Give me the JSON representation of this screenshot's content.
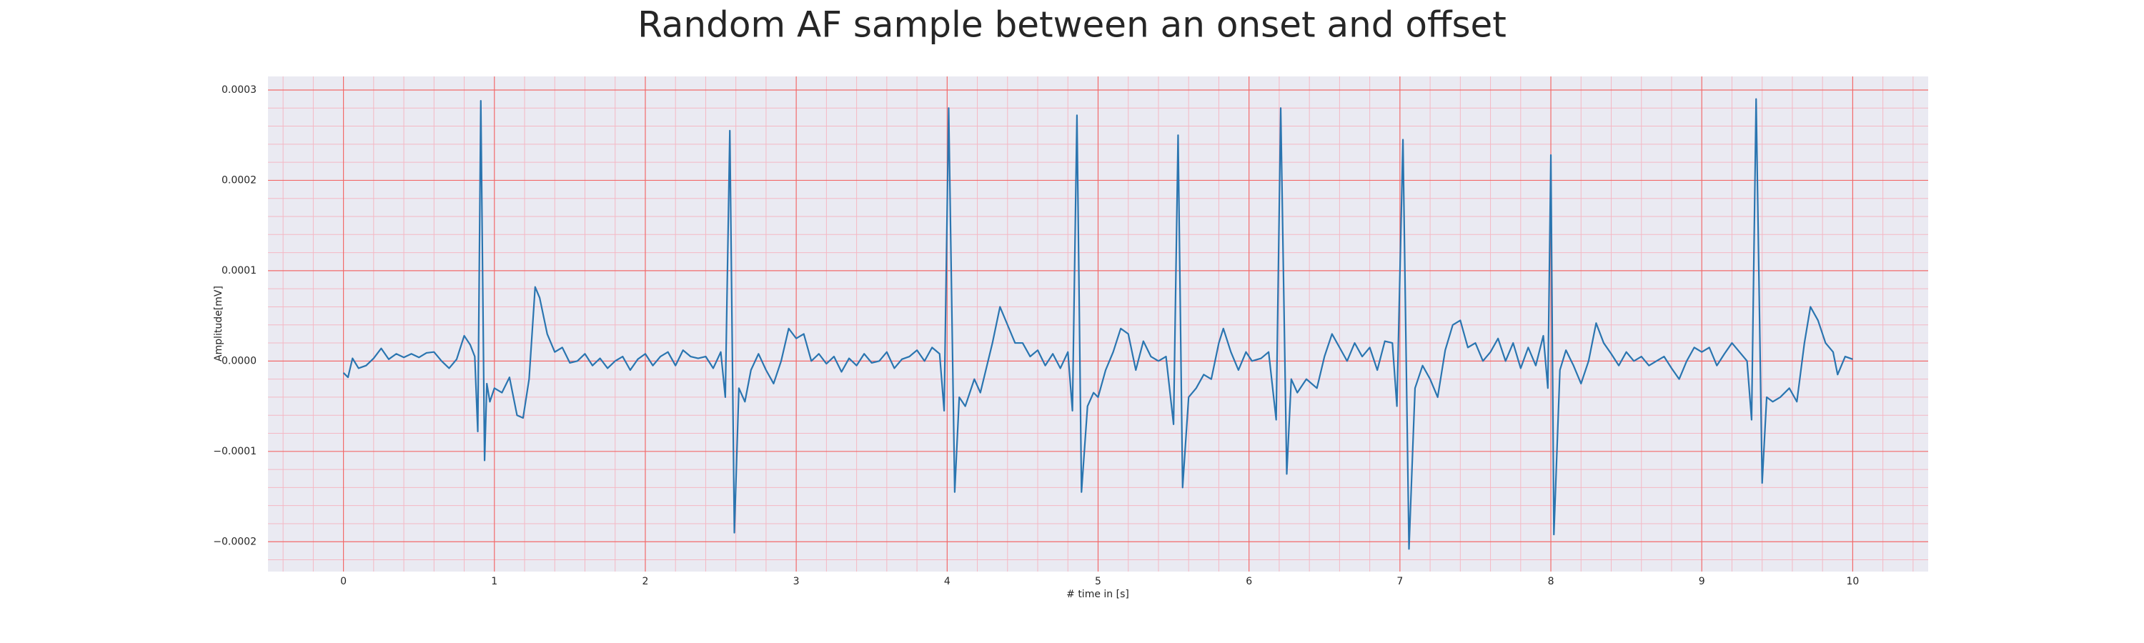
{
  "chart_data": {
    "type": "line",
    "title": "Random AF sample between an onset and offset",
    "xlabel": "# time in [s]",
    "ylabel": "Amplitude[mV]",
    "xlim": [
      -0.5,
      10.5
    ],
    "ylim": [
      -0.000233,
      0.000315
    ],
    "xticks": [
      0,
      1,
      2,
      3,
      4,
      5,
      6,
      7,
      8,
      9,
      10
    ],
    "yticks": [
      {
        "value": -0.0002,
        "label": "−0.0002"
      },
      {
        "value": -0.0001,
        "label": "−0.0001"
      },
      {
        "value": 0,
        "label": "0.0000"
      },
      0.0001,
      0.0002,
      0.0003
    ],
    "grid": true,
    "minor_grid": true,
    "x": [
      0,
      0.03,
      0.06,
      0.1,
      0.15,
      0.2,
      0.25,
      0.3,
      0.35,
      0.4,
      0.45,
      0.5,
      0.55,
      0.6,
      0.65,
      0.7,
      0.75,
      0.8,
      0.84,
      0.87,
      0.89,
      0.91,
      0.935,
      0.95,
      0.97,
      1.0,
      1.05,
      1.1,
      1.15,
      1.19,
      1.23,
      1.27,
      1.3,
      1.35,
      1.4,
      1.45,
      1.5,
      1.55,
      1.6,
      1.65,
      1.7,
      1.75,
      1.8,
      1.85,
      1.9,
      1.95,
      2.0,
      2.05,
      2.1,
      2.15,
      2.2,
      2.25,
      2.3,
      2.35,
      2.4,
      2.45,
      2.5,
      2.53,
      2.56,
      2.59,
      2.62,
      2.66,
      2.7,
      2.75,
      2.8,
      2.85,
      2.9,
      2.95,
      3.0,
      3.05,
      3.1,
      3.15,
      3.2,
      3.25,
      3.3,
      3.35,
      3.4,
      3.45,
      3.5,
      3.55,
      3.6,
      3.65,
      3.7,
      3.75,
      3.8,
      3.85,
      3.9,
      3.95,
      3.98,
      4.01,
      4.05,
      4.08,
      4.12,
      4.18,
      4.22,
      4.3,
      4.35,
      4.4,
      4.45,
      4.5,
      4.55,
      4.6,
      4.65,
      4.7,
      4.75,
      4.8,
      4.83,
      4.86,
      4.89,
      4.93,
      4.97,
      5.0,
      5.05,
      5.1,
      5.15,
      5.2,
      5.25,
      5.3,
      5.35,
      5.4,
      5.45,
      5.5,
      5.53,
      5.56,
      5.6,
      5.65,
      5.7,
      5.75,
      5.8,
      5.83,
      5.88,
      5.93,
      5.98,
      6.02,
      6.08,
      6.13,
      6.18,
      6.21,
      6.25,
      6.28,
      6.32,
      6.38,
      6.45,
      6.5,
      6.55,
      6.6,
      6.65,
      6.7,
      6.75,
      6.8,
      6.85,
      6.9,
      6.95,
      6.98,
      7.02,
      7.06,
      7.1,
      7.15,
      7.2,
      7.25,
      7.3,
      7.35,
      7.4,
      7.45,
      7.5,
      7.55,
      7.6,
      7.65,
      7.7,
      7.75,
      7.8,
      7.85,
      7.9,
      7.95,
      7.98,
      8.0,
      8.02,
      8.06,
      8.1,
      8.15,
      8.2,
      8.25,
      8.3,
      8.35,
      8.4,
      8.45,
      8.5,
      8.55,
      8.6,
      8.65,
      8.7,
      8.75,
      8.8,
      8.85,
      8.9,
      8.95,
      9.0,
      9.05,
      9.1,
      9.15,
      9.2,
      9.25,
      9.3,
      9.33,
      9.36,
      9.4,
      9.43,
      9.47,
      9.52,
      9.58,
      9.63,
      9.68,
      9.72,
      9.77,
      9.82,
      9.87,
      9.9,
      9.95,
      10.0
    ],
    "series": [
      {
        "color": "#2a75b0",
        "values": [
          -1.3e-05,
          -1.8e-05,
          3e-06,
          -8e-06,
          -5e-06,
          3e-06,
          1.4e-05,
          2e-06,
          8e-06,
          4e-06,
          8e-06,
          4e-06,
          9e-06,
          1e-05,
          0,
          -8e-06,
          2e-06,
          2.8e-05,
          1.8e-05,
          5e-06,
          -7.8e-05,
          0.000288,
          -0.00011,
          -2.5e-05,
          -4.5e-05,
          -3e-05,
          -3.5e-05,
          -1.8e-05,
          -6e-05,
          -6.3e-05,
          -2e-05,
          8.2e-05,
          7e-05,
          3e-05,
          1e-05,
          1.5e-05,
          -2e-06,
          0,
          8e-06,
          -5e-06,
          3e-06,
          -8e-06,
          0,
          5e-06,
          -1e-05,
          2e-06,
          8e-06,
          -5e-06,
          5e-06,
          1e-05,
          -5e-06,
          1.2e-05,
          5e-06,
          3e-06,
          5e-06,
          -8e-06,
          1e-05,
          -4e-05,
          0.000255,
          -0.00019,
          -3e-05,
          -4.5e-05,
          -1e-05,
          8e-06,
          -1e-05,
          -2.5e-05,
          0,
          3.6e-05,
          2.5e-05,
          3e-05,
          0,
          8e-06,
          -3e-06,
          5e-06,
          -1.2e-05,
          3e-06,
          -5e-06,
          8e-06,
          -2e-06,
          0,
          1e-05,
          -8e-06,
          2e-06,
          5e-06,
          1.2e-05,
          0,
          1.5e-05,
          8e-06,
          -5.5e-05,
          0.00028,
          -0.000145,
          -4e-05,
          -5e-05,
          -2e-05,
          -3.5e-05,
          2e-05,
          6e-05,
          4e-05,
          2e-05,
          2e-05,
          5e-06,
          1.2e-05,
          -5e-06,
          8e-06,
          -8e-06,
          1e-05,
          -5.5e-05,
          0.000272,
          -0.000145,
          -5e-05,
          -3.5e-05,
          -4e-05,
          -1e-05,
          1e-05,
          3.6e-05,
          3e-05,
          -1e-05,
          2.2e-05,
          5e-06,
          0,
          5e-06,
          -7e-05,
          0.00025,
          -0.00014,
          -4e-05,
          -3e-05,
          -1.5e-05,
          -2e-05,
          2e-05,
          3.6e-05,
          1e-05,
          -1e-05,
          1e-05,
          0,
          3e-06,
          1e-05,
          -6.5e-05,
          0.00028,
          -0.000125,
          -2e-05,
          -3.5e-05,
          -2e-05,
          -3e-05,
          5e-06,
          3e-05,
          1.5e-05,
          0,
          2e-05,
          5e-06,
          1.5e-05,
          -1e-05,
          2.2e-05,
          2e-05,
          -5e-05,
          0.000245,
          -0.000208,
          -3e-05,
          -5e-06,
          -2e-05,
          -4e-05,
          1.2e-05,
          4e-05,
          4.5e-05,
          1.5e-05,
          2e-05,
          0,
          1e-05,
          2.5e-05,
          0,
          2e-05,
          -8e-06,
          1.5e-05,
          -5e-06,
          2.8e-05,
          -3e-05,
          0.000228,
          -0.000192,
          -1e-05,
          1.2e-05,
          -5e-06,
          -2.5e-05,
          0,
          4.2e-05,
          2e-05,
          8e-06,
          -5e-06,
          1e-05,
          0,
          5e-06,
          -5e-06,
          0,
          5e-06,
          -8e-06,
          -2e-05,
          0,
          1.5e-05,
          1e-05,
          1.5e-05,
          -5e-06,
          8e-06,
          2e-05,
          1e-05,
          0,
          -6.5e-05,
          0.00029,
          -0.000135,
          -4e-05,
          -4.5e-05,
          -4e-05,
          -3e-05,
          -4.5e-05,
          2e-05,
          6e-05,
          4.5e-05,
          2e-05,
          1e-05,
          -1.5e-05,
          5e-06,
          2e-06
        ]
      }
    ]
  }
}
